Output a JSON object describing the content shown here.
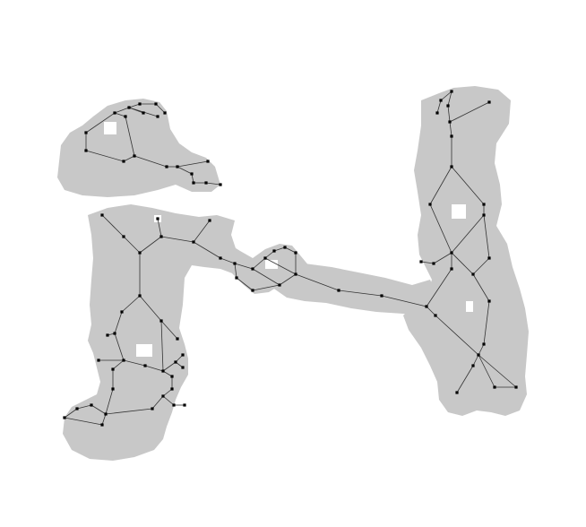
{
  "diagram": {
    "type": "skeleton-graph-overlay",
    "colors": {
      "background": "#ffffff",
      "region": "#c8c8c8",
      "edge": "#333333",
      "node": "#000000"
    },
    "node_count": 73,
    "edge_count": 80
  }
}
